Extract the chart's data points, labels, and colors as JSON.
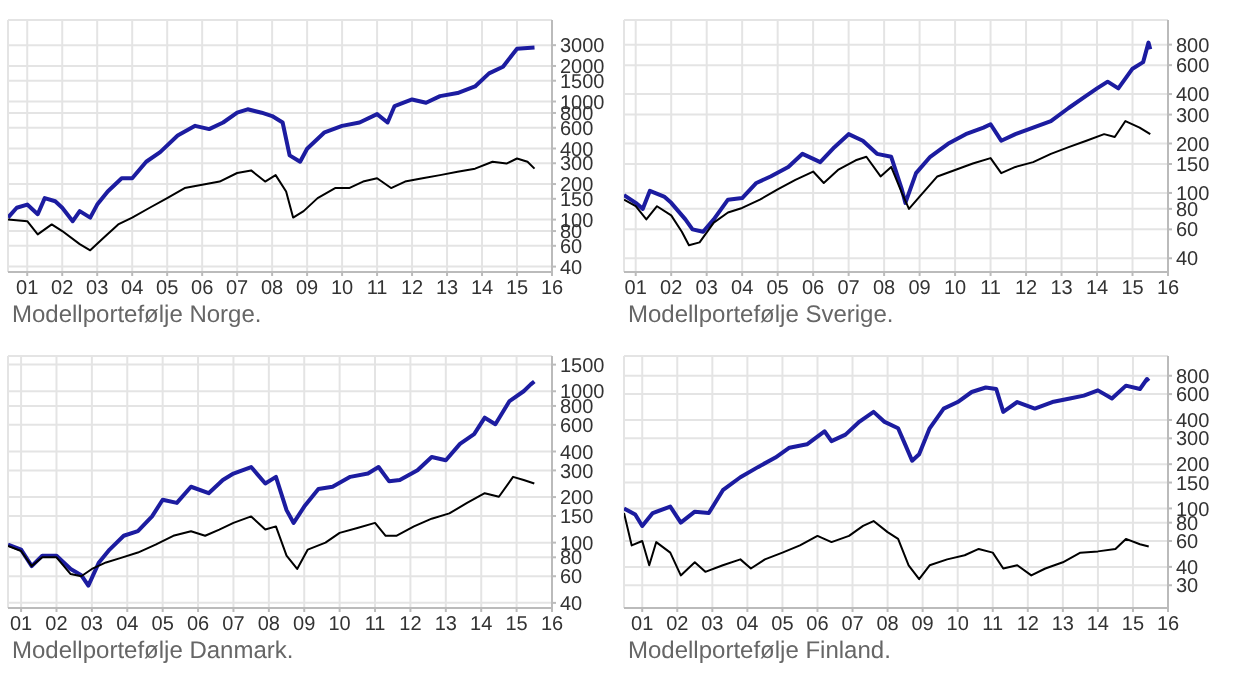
{
  "chart_data": [
    {
      "type": "line",
      "log": "y",
      "grid": true,
      "annotations": [
        "Modellportefølje Norge."
      ],
      "xlim": [
        2000.45,
        2016
      ],
      "xticks": [
        {
          "value": 2001,
          "label": "01"
        },
        {
          "value": 2002,
          "label": "02"
        },
        {
          "value": 2003,
          "label": "03"
        },
        {
          "value": 2004,
          "label": "04"
        },
        {
          "value": 2005,
          "label": "05"
        },
        {
          "value": 2006,
          "label": "06"
        },
        {
          "value": 2007,
          "label": "07"
        },
        {
          "value": 2008,
          "label": "08"
        },
        {
          "value": 2009,
          "label": "09"
        },
        {
          "value": 2010,
          "label": "10"
        },
        {
          "value": 2011,
          "label": "11"
        },
        {
          "value": 2012,
          "label": "12"
        },
        {
          "value": 2013,
          "label": "13"
        },
        {
          "value": 2014,
          "label": "14"
        },
        {
          "value": 2015,
          "label": "15"
        },
        {
          "value": 2016,
          "label": "16"
        }
      ],
      "ylim": [
        36,
        4900
      ],
      "yticks": [
        40,
        60,
        80,
        100,
        150,
        200,
        300,
        400,
        600,
        800,
        1000,
        1500,
        2000,
        3000
      ],
      "series": [
        {
          "color": "#1c1ca0",
          "x": [
            2000.45,
            2000.7,
            2001.0,
            2001.3,
            2001.5,
            2001.8,
            2002.0,
            2002.3,
            2002.5,
            2002.8,
            2003.0,
            2003.3,
            2003.7,
            2004.0,
            2004.4,
            2004.8,
            2005.3,
            2005.8,
            2006.2,
            2006.6,
            2007.0,
            2007.3,
            2007.7,
            2008.0,
            2008.3,
            2008.5,
            2008.8,
            2009.0,
            2009.5,
            2010.0,
            2010.5,
            2011.0,
            2011.3,
            2011.5,
            2012.0,
            2012.4,
            2012.8,
            2013.3,
            2013.8,
            2014.2,
            2014.6,
            2015.0,
            2015.5
          ],
          "values": [
            104,
            126,
            134,
            111,
            152,
            143,
            126,
            97,
            118,
            104,
            134,
            173,
            224,
            224,
            309,
            373,
            515,
            622,
            584,
            664,
            804,
            859,
            804,
            753,
            664,
            350,
            309,
            398,
            549,
            622,
            664,
            782,
            664,
            916,
            1040,
            975,
            1110,
            1180,
            1340,
            1730,
            1970,
            2800,
            2870
          ]
        },
        {
          "color": "#000000",
          "x": [
            2000.45,
            2001.0,
            2001.3,
            2001.7,
            2002.0,
            2002.5,
            2002.8,
            2003.2,
            2003.6,
            2004.0,
            2004.5,
            2005.0,
            2005.5,
            2006.0,
            2006.5,
            2007.0,
            2007.4,
            2007.8,
            2008.1,
            2008.4,
            2008.6,
            2008.9,
            2009.3,
            2009.8,
            2010.2,
            2010.6,
            2011.0,
            2011.4,
            2011.8,
            2012.3,
            2012.8,
            2013.3,
            2013.8,
            2014.3,
            2014.7,
            2015.0,
            2015.3,
            2015.5
          ],
          "values": [
            100,
            97,
            75,
            91,
            80,
            62,
            55,
            71,
            91,
            104,
            126,
            152,
            185,
            197,
            210,
            248,
            261,
            210,
            238,
            173,
            104,
            118,
            152,
            185,
            185,
            210,
            224,
            185,
            210,
            224,
            238,
            254,
            270,
            309,
            298,
            329,
            309,
            270
          ]
        }
      ]
    },
    {
      "type": "line",
      "log": "y",
      "grid": true,
      "annotations": [
        "Modellportefølje Sverige."
      ],
      "xlim": [
        2000.67,
        2016
      ],
      "xticks": [
        {
          "value": 2001,
          "label": "01"
        },
        {
          "value": 2002,
          "label": "02"
        },
        {
          "value": 2003,
          "label": "03"
        },
        {
          "value": 2004,
          "label": "04"
        },
        {
          "value": 2005,
          "label": "05"
        },
        {
          "value": 2006,
          "label": "06"
        },
        {
          "value": 2007,
          "label": "07"
        },
        {
          "value": 2008,
          "label": "08"
        },
        {
          "value": 2009,
          "label": "09"
        },
        {
          "value": 2010,
          "label": "10"
        },
        {
          "value": 2011,
          "label": "11"
        },
        {
          "value": 2012,
          "label": "12"
        },
        {
          "value": 2013,
          "label": "13"
        },
        {
          "value": 2014,
          "label": "14"
        },
        {
          "value": 2015,
          "label": "15"
        },
        {
          "value": 2016,
          "label": "16"
        }
      ],
      "ylim": [
        33,
        1130
      ],
      "yticks": [
        40,
        60,
        80,
        100,
        150,
        200,
        300,
        400,
        600,
        800
      ],
      "series": [
        {
          "color": "#1c1ca0",
          "x": [
            2000.67,
            2001.0,
            2001.2,
            2001.4,
            2001.8,
            2002.0,
            2002.4,
            2002.6,
            2002.9,
            2003.2,
            2003.6,
            2004.0,
            2004.4,
            2004.8,
            2005.3,
            2005.7,
            2006.2,
            2006.6,
            2007.0,
            2007.4,
            2007.8,
            2008.2,
            2008.5,
            2008.6,
            2008.9,
            2009.3,
            2009.8,
            2010.3,
            2010.8,
            2011.0,
            2011.3,
            2011.7,
            2012.2,
            2012.7,
            2013.2,
            2013.6,
            2014.0,
            2014.3,
            2014.6,
            2015.0,
            2015.3,
            2015.45,
            2015.5
          ],
          "values": [
            97,
            87,
            80,
            103,
            95,
            87,
            69,
            60,
            58,
            69,
            91,
            93,
            115,
            126,
            144,
            173,
            154,
            190,
            228,
            208,
            173,
            166,
            105,
            87,
            132,
            166,
            199,
            228,
            250,
            262,
            208,
            228,
            250,
            274,
            329,
            378,
            433,
            476,
            433,
            571,
            626,
            823,
            750
          ]
        },
        {
          "color": "#000000",
          "x": [
            2000.67,
            2001.0,
            2001.3,
            2001.6,
            2002.0,
            2002.3,
            2002.5,
            2002.8,
            2003.2,
            2003.6,
            2004.0,
            2004.5,
            2005.0,
            2005.5,
            2006.0,
            2006.3,
            2006.7,
            2007.2,
            2007.5,
            2007.9,
            2008.2,
            2008.5,
            2008.7,
            2009.0,
            2009.5,
            2010.0,
            2010.5,
            2011.0,
            2011.3,
            2011.7,
            2012.2,
            2012.7,
            2013.2,
            2013.7,
            2014.2,
            2014.5,
            2014.8,
            2015.2,
            2015.5
          ],
          "values": [
            91,
            83,
            69,
            83,
            73,
            58,
            48,
            50,
            66,
            76,
            81,
            91,
            105,
            120,
            135,
            115,
            138,
            158,
            166,
            126,
            144,
            100,
            80,
            95,
            126,
            138,
            151,
            163,
            132,
            144,
            154,
            173,
            190,
            208,
            228,
            219,
            274,
            250,
            228
          ]
        }
      ]
    },
    {
      "type": "line",
      "log": "y",
      "grid": true,
      "annotations": [
        "Modellportefølje Danmark."
      ],
      "xlim": [
        2000.63,
        2016
      ],
      "xticks": [
        {
          "value": 2001,
          "label": "01"
        },
        {
          "value": 2002,
          "label": "02"
        },
        {
          "value": 2003,
          "label": "03"
        },
        {
          "value": 2004,
          "label": "04"
        },
        {
          "value": 2005,
          "label": "05"
        },
        {
          "value": 2006,
          "label": "06"
        },
        {
          "value": 2007,
          "label": "07"
        },
        {
          "value": 2008,
          "label": "08"
        },
        {
          "value": 2009,
          "label": "09"
        },
        {
          "value": 2010,
          "label": "10"
        },
        {
          "value": 2011,
          "label": "11"
        },
        {
          "value": 2012,
          "label": "12"
        },
        {
          "value": 2013,
          "label": "13"
        },
        {
          "value": 2014,
          "label": "14"
        },
        {
          "value": 2015,
          "label": "15"
        },
        {
          "value": 2016,
          "label": "16"
        }
      ],
      "ylim": [
        37,
        1710
      ],
      "yticks": [
        40,
        60,
        80,
        100,
        150,
        200,
        300,
        400,
        600,
        800,
        1000,
        1500
      ],
      "series": [
        {
          "color": "#1c1ca0",
          "x": [
            2000.63,
            2001.0,
            2001.3,
            2001.6,
            2002.0,
            2002.4,
            2002.7,
            2002.9,
            2003.2,
            2003.5,
            2003.9,
            2004.3,
            2004.7,
            2005.0,
            2005.4,
            2005.8,
            2006.3,
            2006.7,
            2007.0,
            2007.5,
            2007.9,
            2008.2,
            2008.5,
            2008.7,
            2009.0,
            2009.4,
            2009.8,
            2010.3,
            2010.8,
            2011.1,
            2011.4,
            2011.7,
            2012.2,
            2012.6,
            2013.0,
            2013.4,
            2013.8,
            2014.1,
            2014.4,
            2014.8,
            2015.2,
            2015.4,
            2015.5
          ],
          "values": [
            97,
            90,
            70,
            82,
            82,
            67,
            61,
            52,
            74,
            90,
            111,
            119,
            149,
            192,
            183,
            234,
            212,
            259,
            286,
            316,
            246,
            272,
            164,
            135,
            173,
            226,
            234,
            272,
            286,
            316,
            254,
            259,
            301,
            368,
            350,
            449,
            521,
            669,
            606,
            862,
            1000,
            1110,
            1160
          ]
        },
        {
          "color": "#000000",
          "x": [
            2000.63,
            2001.0,
            2001.3,
            2001.6,
            2002.0,
            2002.4,
            2002.7,
            2003.0,
            2003.4,
            2003.8,
            2004.3,
            2004.8,
            2005.3,
            2005.8,
            2006.2,
            2006.6,
            2007.0,
            2007.5,
            2007.9,
            2008.2,
            2008.5,
            2008.8,
            2009.1,
            2009.6,
            2010.0,
            2010.5,
            2011.0,
            2011.3,
            2011.6,
            2012.1,
            2012.6,
            2013.1,
            2013.6,
            2014.1,
            2014.5,
            2014.9,
            2015.2,
            2015.5
          ],
          "values": [
            95,
            88,
            70,
            80,
            80,
            62,
            60,
            67,
            74,
            79,
            86,
            97,
            111,
            119,
            111,
            122,
            135,
            149,
            122,
            128,
            82,
            67,
            90,
            100,
            116,
            125,
            135,
            111,
            111,
            128,
            144,
            156,
            183,
            212,
            201,
            272,
            259,
            246
          ]
        }
      ]
    },
    {
      "type": "line",
      "log": "y",
      "grid": true,
      "annotations": [
        "Modellportefølje Finland."
      ],
      "xlim": [
        2000.48,
        2016
      ],
      "xticks": [
        {
          "value": 2001,
          "label": "01"
        },
        {
          "value": 2002,
          "label": "02"
        },
        {
          "value": 2003,
          "label": "03"
        },
        {
          "value": 2004,
          "label": "04"
        },
        {
          "value": 2005,
          "label": "05"
        },
        {
          "value": 2006,
          "label": "06"
        },
        {
          "value": 2007,
          "label": "07"
        },
        {
          "value": 2008,
          "label": "08"
        },
        {
          "value": 2009,
          "label": "09"
        },
        {
          "value": 2010,
          "label": "10"
        },
        {
          "value": 2011,
          "label": "11"
        },
        {
          "value": 2012,
          "label": "12"
        },
        {
          "value": 2013,
          "label": "13"
        },
        {
          "value": 2014,
          "label": "14"
        },
        {
          "value": 2015,
          "label": "15"
        },
        {
          "value": 2016,
          "label": "16"
        }
      ],
      "ylim": [
        21,
        1090
      ],
      "yticks": [
        30,
        40,
        60,
        80,
        100,
        150,
        200,
        300,
        400,
        600,
        800
      ],
      "series": [
        {
          "color": "#1c1ca0",
          "x": [
            2000.48,
            2000.8,
            2001.0,
            2001.3,
            2001.8,
            2002.1,
            2002.5,
            2002.9,
            2003.3,
            2003.8,
            2004.3,
            2004.8,
            2005.2,
            2005.7,
            2006.2,
            2006.4,
            2006.8,
            2007.2,
            2007.6,
            2007.9,
            2008.3,
            2008.5,
            2008.7,
            2008.9,
            2009.2,
            2009.6,
            2010.0,
            2010.4,
            2010.8,
            2011.1,
            2011.3,
            2011.7,
            2012.2,
            2012.7,
            2013.2,
            2013.6,
            2014.0,
            2014.4,
            2014.8,
            2015.2,
            2015.4,
            2015.45
          ],
          "values": [
            100,
            91,
            76,
            93,
            103,
            80,
            95,
            93,
            133,
            163,
            191,
            222,
            259,
            273,
            335,
            287,
            318,
            390,
            454,
            390,
            351,
            273,
            211,
            234,
            351,
            478,
            530,
            620,
            665,
            650,
            454,
            530,
            478,
            530,
            560,
            586,
            636,
            560,
            685,
            650,
            760,
            735
          ]
        },
        {
          "color": "#000000",
          "x": [
            2000.48,
            2000.7,
            2001.0,
            2001.2,
            2001.4,
            2001.8,
            2002.1,
            2002.5,
            2002.8,
            2003.3,
            2003.8,
            2004.1,
            2004.5,
            2005.0,
            2005.5,
            2006.0,
            2006.4,
            2006.9,
            2007.3,
            2007.6,
            2008.0,
            2008.3,
            2008.6,
            2008.9,
            2009.2,
            2009.7,
            2010.2,
            2010.6,
            2011.0,
            2011.3,
            2011.7,
            2012.1,
            2012.5,
            2013.0,
            2013.5,
            2014.0,
            2014.5,
            2014.8,
            2015.2,
            2015.45
          ],
          "values": [
            93,
            56,
            60,
            41,
            59,
            50,
            35,
            43,
            37,
            41,
            45,
            39,
            45,
            50,
            56,
            65,
            59,
            65,
            76,
            82,
            69,
            62,
            41,
            33,
            41,
            45,
            48,
            53,
            50,
            39,
            41,
            35,
            39,
            43,
            50,
            51,
            53,
            62,
            57,
            55
          ]
        }
      ]
    }
  ]
}
